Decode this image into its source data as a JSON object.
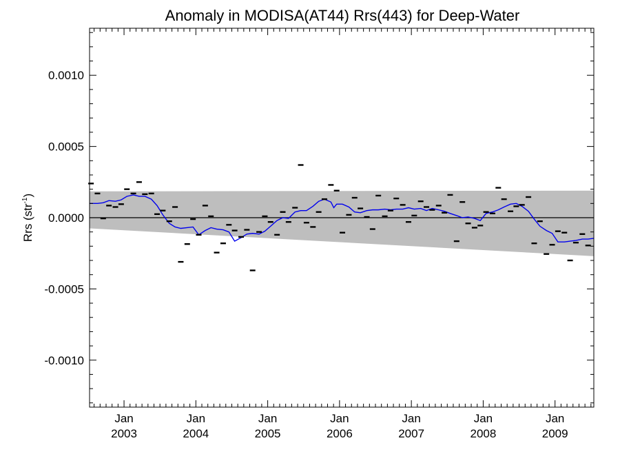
{
  "chart_data": {
    "type": "scatter",
    "title": "Anomaly in MODISA(AT44) Rrs(443) for Deep-Water",
    "ylabel_main": "Rrs (str",
    "ylabel_sup": "-1",
    "ylabel_close": ")",
    "xlim": [
      2002.52,
      2009.54
    ],
    "ylim": [
      -0.00133,
      0.00133
    ],
    "yticks": [
      {
        "value": 0.001,
        "label": "0.0010"
      },
      {
        "value": 0.0005,
        "label": "0.0005"
      },
      {
        "value": 0.0,
        "label": "0.0000"
      },
      {
        "value": -0.0005,
        "label": "-0.0005"
      },
      {
        "value": -0.001,
        "label": "-0.0010"
      }
    ],
    "xticks": [
      {
        "value": 2003.0,
        "month": "Jan",
        "year": "2003"
      },
      {
        "value": 2004.0,
        "month": "Jan",
        "year": "2004"
      },
      {
        "value": 2005.0,
        "month": "Jan",
        "year": "2005"
      },
      {
        "value": 2006.0,
        "month": "Jan",
        "year": "2006"
      },
      {
        "value": 2007.0,
        "month": "Jan",
        "year": "2007"
      },
      {
        "value": 2008.0,
        "month": "Jan",
        "year": "2008"
      },
      {
        "value": 2009.0,
        "month": "Jan",
        "year": "2009"
      }
    ],
    "band": {
      "upper": [
        [
          2002.52,
          0.000185
        ],
        [
          2009.54,
          0.00019
        ]
      ],
      "lower": [
        [
          2002.52,
          -7.5e-05
        ],
        [
          2009.54,
          -0.00027
        ]
      ],
      "color": "#bebebe"
    },
    "zero_line": 0.0,
    "monthly_anomalies": [
      [
        2002.54,
        0.00024
      ],
      [
        2002.63,
        0.00017
      ],
      [
        2002.71,
        -5e-06
      ],
      [
        2002.79,
        8.5e-05
      ],
      [
        2002.88,
        7.5e-05
      ],
      [
        2002.96,
        9.5e-05
      ],
      [
        2003.04,
        0.0002
      ],
      [
        2003.13,
        0.00017
      ],
      [
        2003.21,
        0.00025
      ],
      [
        2003.29,
        0.000165
      ],
      [
        2003.38,
        0.00017
      ],
      [
        2003.46,
        2.5e-05
      ],
      [
        2003.54,
        5e-05
      ],
      [
        2003.63,
        -2.5e-05
      ],
      [
        2003.71,
        7.5e-05
      ],
      [
        2003.79,
        -0.00031
      ],
      [
        2003.88,
        -0.000185
      ],
      [
        2003.96,
        -1e-05
      ],
      [
        2004.04,
        -0.00012
      ],
      [
        2004.13,
        8.5e-05
      ],
      [
        2004.21,
        1e-05
      ],
      [
        2004.29,
        -0.000245
      ],
      [
        2004.38,
        -0.00018
      ],
      [
        2004.46,
        -5e-05
      ],
      [
        2004.54,
        -9e-05
      ],
      [
        2004.63,
        -0.000135
      ],
      [
        2004.71,
        -8.5e-05
      ],
      [
        2004.79,
        -0.00037
      ],
      [
        2004.88,
        -0.0001
      ],
      [
        2004.96,
        1e-05
      ],
      [
        2005.04,
        -3e-05
      ],
      [
        2005.13,
        -0.00012
      ],
      [
        2005.21,
        4e-05
      ],
      [
        2005.29,
        -3e-05
      ],
      [
        2005.38,
        7e-05
      ],
      [
        2005.46,
        0.00037
      ],
      [
        2005.54,
        -3.5e-05
      ],
      [
        2005.63,
        -6.5e-05
      ],
      [
        2005.71,
        4e-05
      ],
      [
        2005.79,
        0.00013
      ],
      [
        2005.88,
        0.00023
      ],
      [
        2005.96,
        0.00019
      ],
      [
        2006.04,
        -0.000105
      ],
      [
        2006.13,
        2e-05
      ],
      [
        2006.21,
        0.00014
      ],
      [
        2006.29,
        6.5e-05
      ],
      [
        2006.38,
        5e-06
      ],
      [
        2006.46,
        -8e-05
      ],
      [
        2006.54,
        0.000155
      ],
      [
        2006.63,
        1e-05
      ],
      [
        2006.71,
        5e-05
      ],
      [
        2006.79,
        0.000135
      ],
      [
        2006.88,
        9e-05
      ],
      [
        2006.96,
        -3e-05
      ],
      [
        2007.04,
        1.5e-05
      ],
      [
        2007.13,
        0.000115
      ],
      [
        2007.21,
        7.5e-05
      ],
      [
        2007.29,
        5.5e-05
      ],
      [
        2007.38,
        8.5e-05
      ],
      [
        2007.46,
        3.5e-05
      ],
      [
        2007.54,
        0.00016
      ],
      [
        2007.63,
        -0.000165
      ],
      [
        2007.71,
        0.00011
      ],
      [
        2007.79,
        -4e-05
      ],
      [
        2007.88,
        -7e-05
      ],
      [
        2007.96,
        -5.5e-05
      ],
      [
        2008.04,
        4e-05
      ],
      [
        2008.13,
        3e-05
      ],
      [
        2008.21,
        0.00021
      ],
      [
        2008.29,
        0.00013
      ],
      [
        2008.38,
        4.5e-05
      ],
      [
        2008.46,
        8e-05
      ],
      [
        2008.54,
        9e-05
      ],
      [
        2008.63,
        0.000145
      ],
      [
        2008.71,
        -0.00018
      ],
      [
        2008.79,
        -2.5e-05
      ],
      [
        2008.88,
        -0.000255
      ],
      [
        2008.96,
        -0.00019
      ],
      [
        2009.04,
        -9.5e-05
      ],
      [
        2009.13,
        -0.000105
      ],
      [
        2009.21,
        -0.0003
      ],
      [
        2009.29,
        -0.000175
      ],
      [
        2009.38,
        -0.000115
      ],
      [
        2009.46,
        -0.000195
      ]
    ],
    "running_mean": {
      "color": "#0000ee",
      "points": [
        [
          2002.52,
          0.0001
        ],
        [
          2002.63,
          0.0001
        ],
        [
          2002.71,
          0.000105
        ],
        [
          2002.79,
          0.00012
        ],
        [
          2002.88,
          0.000115
        ],
        [
          2002.96,
          0.000125
        ],
        [
          2003.04,
          0.00015
        ],
        [
          2003.13,
          0.00016
        ],
        [
          2003.21,
          0.00015
        ],
        [
          2003.29,
          0.00015
        ],
        [
          2003.38,
          0.00013
        ],
        [
          2003.46,
          8.5e-05
        ],
        [
          2003.54,
          2e-05
        ],
        [
          2003.63,
          -4e-05
        ],
        [
          2003.71,
          -6.5e-05
        ],
        [
          2003.79,
          -7.5e-05
        ],
        [
          2003.88,
          -7e-05
        ],
        [
          2003.96,
          -6.5e-05
        ],
        [
          2004.04,
          -0.00012
        ],
        [
          2004.13,
          -9e-05
        ],
        [
          2004.21,
          -7e-05
        ],
        [
          2004.29,
          -8e-05
        ],
        [
          2004.38,
          -8.5e-05
        ],
        [
          2004.46,
          -0.0001
        ],
        [
          2004.54,
          -0.000165
        ],
        [
          2004.63,
          -0.00014
        ],
        [
          2004.71,
          -0.000115
        ],
        [
          2004.79,
          -0.00011
        ],
        [
          2004.88,
          -0.000115
        ],
        [
          2004.96,
          -9.5e-05
        ],
        [
          2005.04,
          -6e-05
        ],
        [
          2005.13,
          -2e-05
        ],
        [
          2005.21,
          0.0
        ],
        [
          2005.29,
          -5e-06
        ],
        [
          2005.38,
          4e-05
        ],
        [
          2005.46,
          5e-05
        ],
        [
          2005.54,
          5e-05
        ],
        [
          2005.63,
          8e-05
        ],
        [
          2005.71,
          0.000115
        ],
        [
          2005.79,
          0.00013
        ],
        [
          2005.88,
          0.00011
        ],
        [
          2005.92,
          7e-05
        ],
        [
          2005.96,
          9.5e-05
        ],
        [
          2006.04,
          9.5e-05
        ],
        [
          2006.13,
          7.5e-05
        ],
        [
          2006.21,
          4e-05
        ],
        [
          2006.29,
          3.5e-05
        ],
        [
          2006.38,
          5e-05
        ],
        [
          2006.46,
          5.5e-05
        ],
        [
          2006.54,
          5.5e-05
        ],
        [
          2006.63,
          6e-05
        ],
        [
          2006.71,
          5.5e-05
        ],
        [
          2006.79,
          6e-05
        ],
        [
          2006.88,
          6e-05
        ],
        [
          2006.96,
          7e-05
        ],
        [
          2007.04,
          6e-05
        ],
        [
          2007.13,
          6.5e-05
        ],
        [
          2007.21,
          5e-05
        ],
        [
          2007.29,
          6.5e-05
        ],
        [
          2007.38,
          5.5e-05
        ],
        [
          2007.46,
          4.5e-05
        ],
        [
          2007.54,
          3e-05
        ],
        [
          2007.63,
          1.5e-05
        ],
        [
          2007.71,
          0.0
        ],
        [
          2007.79,
          5e-06
        ],
        [
          2007.88,
          -5e-06
        ],
        [
          2007.96,
          -2e-05
        ],
        [
          2008.04,
          3e-05
        ],
        [
          2008.13,
          4e-05
        ],
        [
          2008.21,
          5.5e-05
        ],
        [
          2008.29,
          7.5e-05
        ],
        [
          2008.38,
          9.5e-05
        ],
        [
          2008.46,
          0.0001
        ],
        [
          2008.54,
          8e-05
        ],
        [
          2008.63,
          4.5e-05
        ],
        [
          2008.71,
          -1e-05
        ],
        [
          2008.79,
          -6e-05
        ],
        [
          2008.88,
          -9e-05
        ],
        [
          2008.96,
          -0.00011
        ],
        [
          2009.04,
          -0.00017
        ],
        [
          2009.13,
          -0.00017
        ],
        [
          2009.21,
          -0.000165
        ],
        [
          2009.29,
          -0.00016
        ],
        [
          2009.38,
          -0.00015
        ],
        [
          2009.46,
          -0.00015
        ],
        [
          2009.54,
          -0.000145
        ]
      ]
    }
  }
}
